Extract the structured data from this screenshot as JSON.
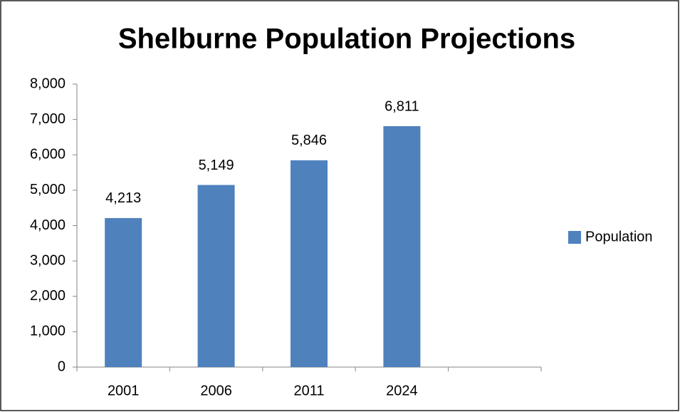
{
  "chart_data": {
    "type": "bar",
    "title": "Shelburne Population Projections",
    "categories": [
      "2001",
      "2006",
      "2011",
      "2024",
      null
    ],
    "series": [
      {
        "name": "Population",
        "color": "#4f81bd",
        "values": [
          4213,
          5149,
          5846,
          6811,
          null
        ],
        "value_labels": [
          "4,213",
          "5,149",
          "5,846",
          "6,811",
          null
        ]
      }
    ],
    "ylim": [
      0,
      8000
    ],
    "yticks": [
      0,
      {
        "value": 1000,
        "label": "1,000"
      },
      {
        "value": 2000,
        "label": "2,000"
      },
      {
        "value": 3000,
        "label": "3,000"
      },
      {
        "value": 4000,
        "label": "4,000"
      },
      {
        "value": 5000,
        "label": "5,000"
      },
      {
        "value": 6000,
        "label": "6,000"
      },
      {
        "value": 7000,
        "label": "7,000"
      },
      {
        "value": 8000,
        "label": "8,000"
      }
    ],
    "grid": false,
    "legend": "right"
  }
}
